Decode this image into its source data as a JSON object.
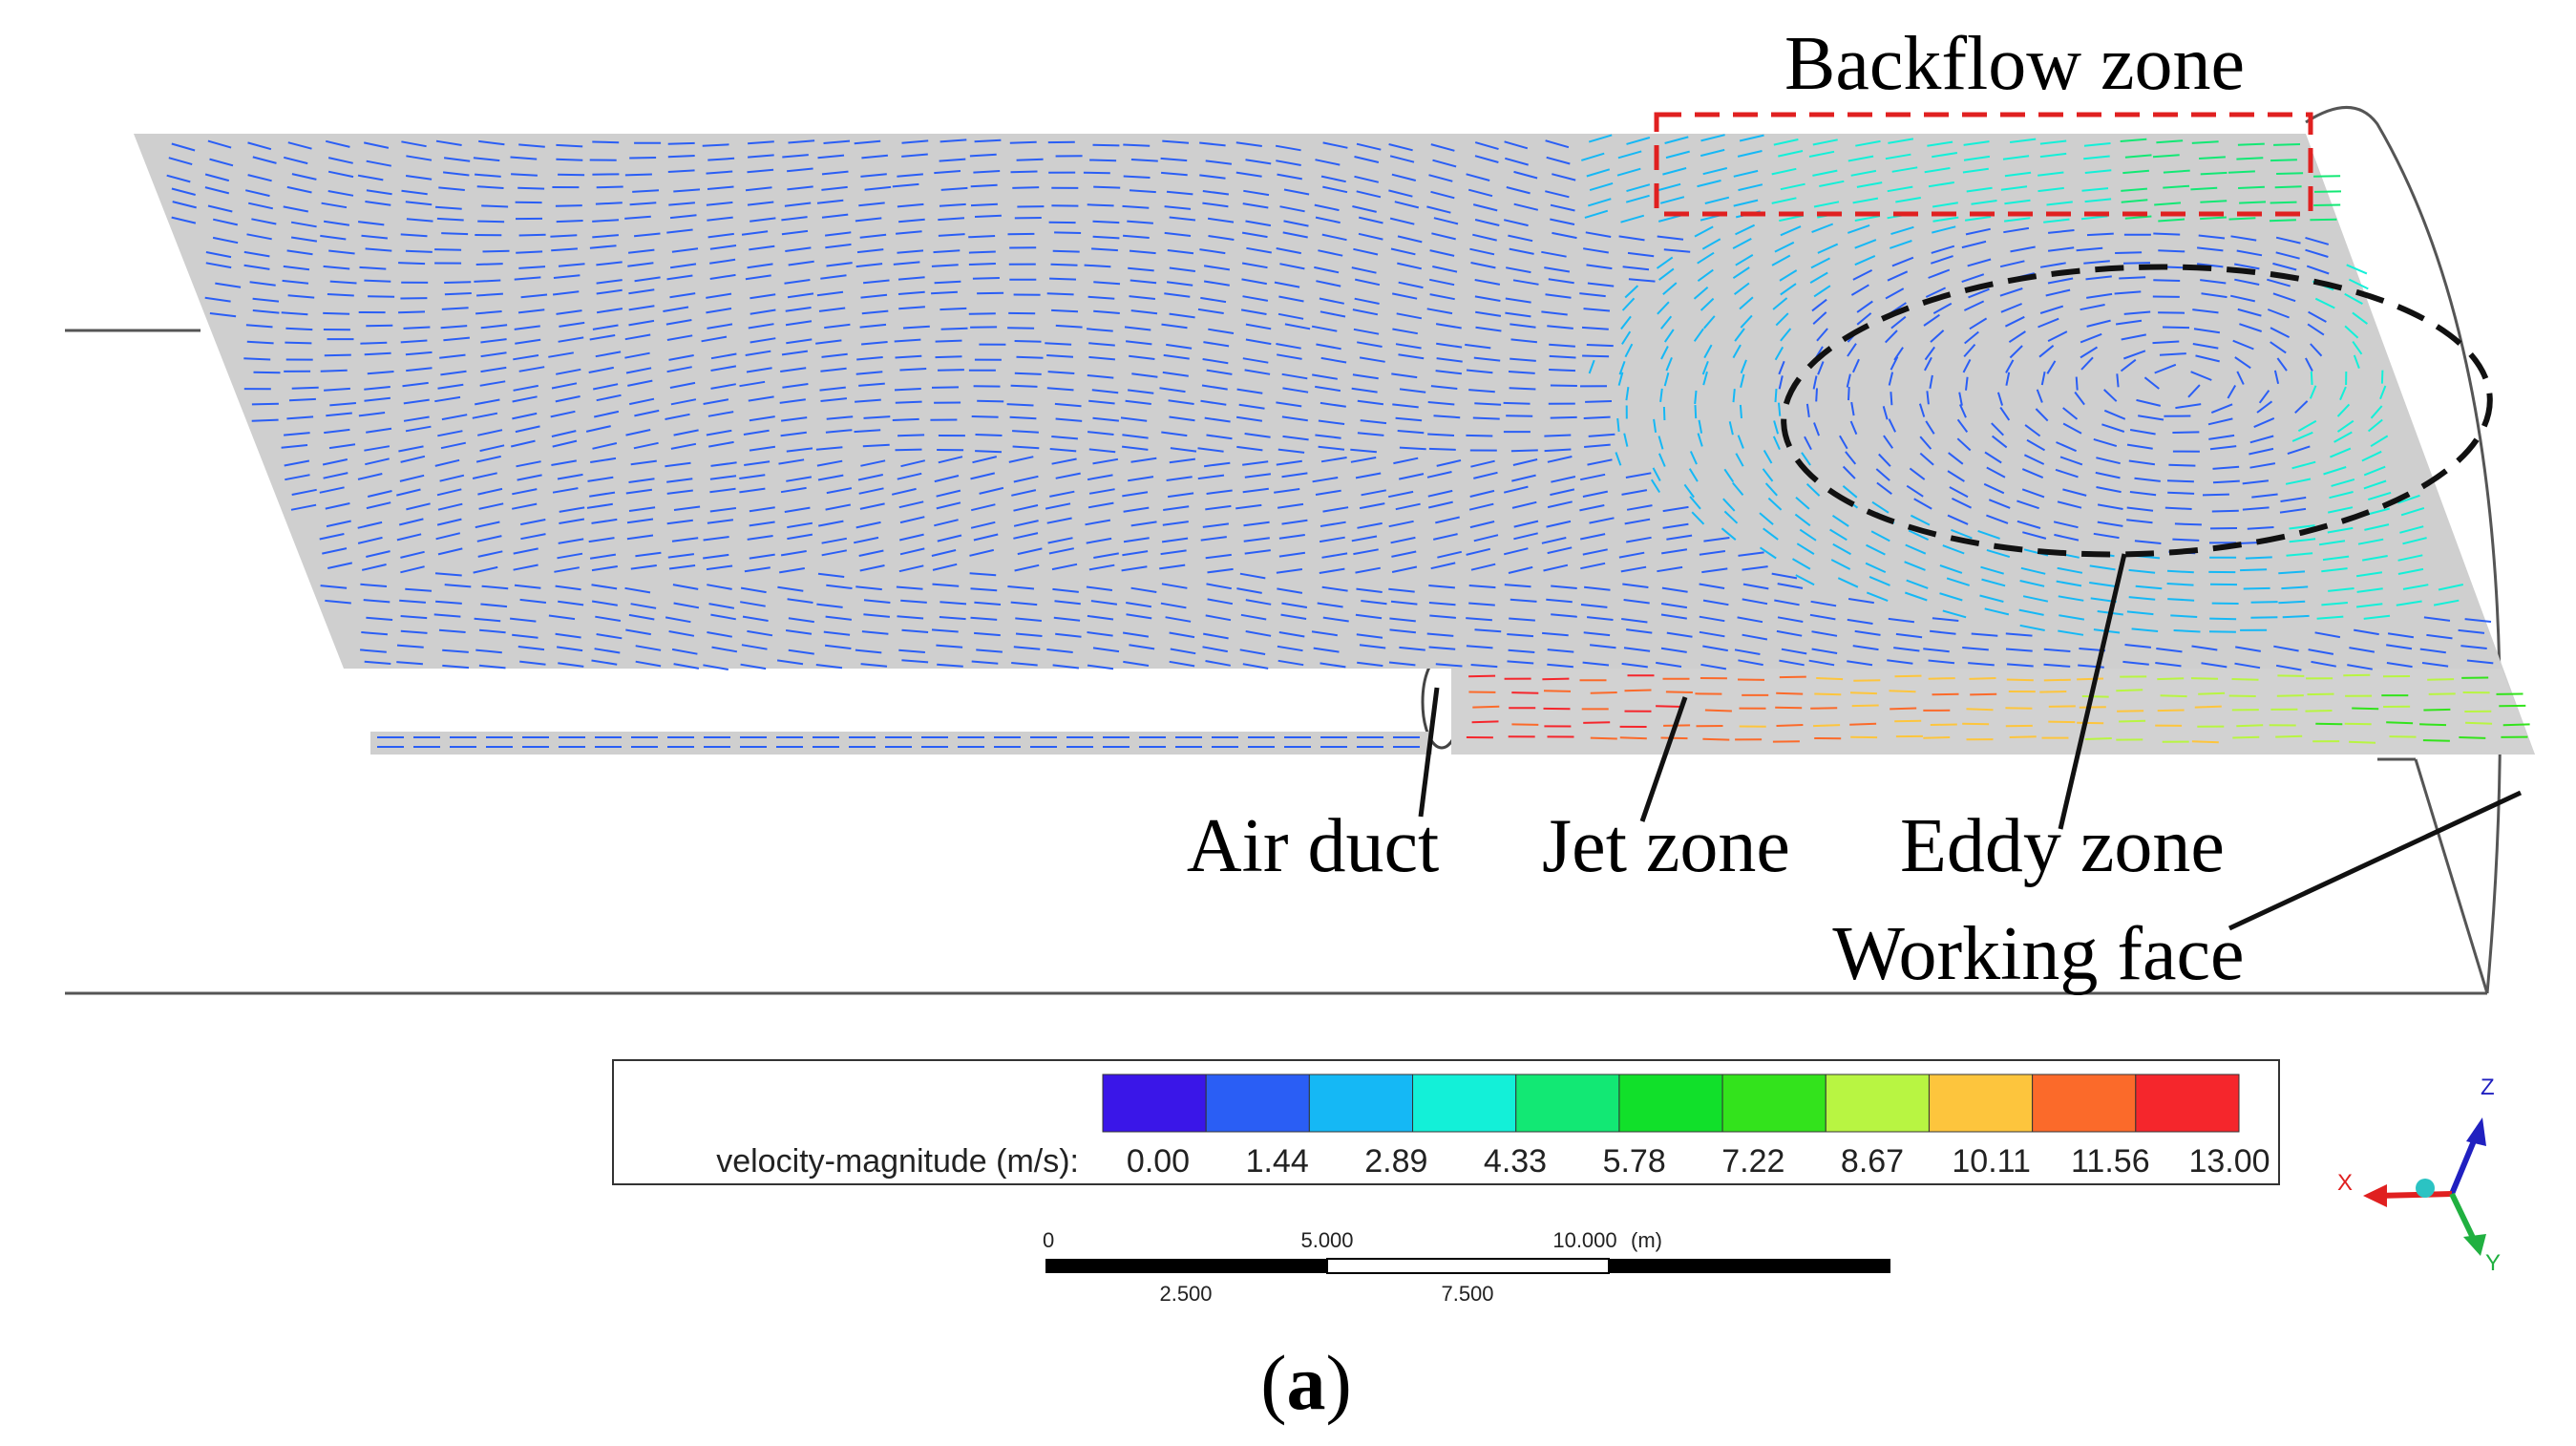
{
  "annotations": {
    "backflow": "Backflow zone",
    "air_duct": "Air duct",
    "jet": "Jet zone",
    "eddy": "Eddy zone",
    "working_face": "Working face"
  },
  "legend": {
    "label": "velocity-magnitude (m/s):",
    "ticks": [
      "0.00",
      "1.44",
      "2.89",
      "4.33",
      "5.78",
      "7.22",
      "8.67",
      "10.11",
      "11.56",
      "13.00"
    ],
    "colors": [
      "#3a16e8",
      "#2a5ef5",
      "#15b8f5",
      "#13f0d8",
      "#12e874",
      "#11e02a",
      "#33e31c",
      "#b8f542",
      "#fdc53d",
      "#fb6a2a",
      "#f5262c"
    ]
  },
  "scale_bar": {
    "top_labels": [
      "0",
      "5.000",
      "10.000"
    ],
    "unit": "(m)",
    "bottom_labels": [
      "2.500",
      "7.500"
    ]
  },
  "axes_triad": {
    "x": "X",
    "y": "Y",
    "z": "Z",
    "x_color": "#e02020",
    "y_color": "#20b040",
    "z_color": "#2020c0"
  },
  "caption": {
    "open": "(",
    "letter": "a",
    "close": ")"
  }
}
